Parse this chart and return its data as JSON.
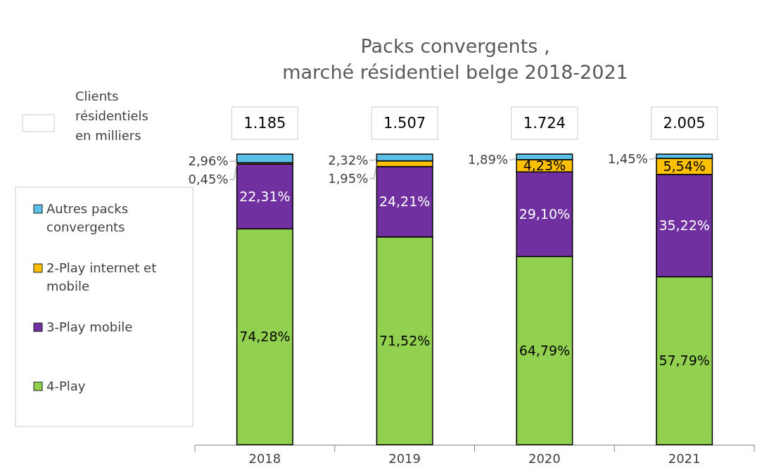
{
  "chart_data": {
    "type": "bar",
    "title": "Packs convergents ,\nmarché résidentiel belge 2018-2021",
    "categories": [
      "2018",
      "2019",
      "2020",
      "2021"
    ],
    "stacked": true,
    "legend": "left",
    "series": [
      {
        "name": "4-Play",
        "color": "#92d050",
        "values": [
          74.28,
          71.52,
          64.79,
          57.79
        ],
        "value_labels": [
          "74,28%",
          "71,52%",
          "64,79%",
          "57,79%"
        ]
      },
      {
        "name": "3-Play mobile",
        "color": "#7030a0",
        "values": [
          22.31,
          24.21,
          29.1,
          35.22
        ],
        "value_labels": [
          "22,31%",
          "24,21%",
          "29,10%",
          "35,22%"
        ]
      },
      {
        "name": "2-Play internet et mobile",
        "color": "#ffc000",
        "values": [
          0.45,
          1.95,
          4.23,
          5.54
        ],
        "value_labels": [
          "0,45%",
          "1,95%",
          "4,23%",
          "5,54%"
        ]
      },
      {
        "name": "Autres packs convergents",
        "color": "#5bc0e8",
        "values": [
          2.96,
          2.32,
          1.89,
          1.45
        ],
        "value_labels": [
          "2,96%",
          "2,32%",
          "1,89%",
          "1,45%"
        ]
      }
    ],
    "annotations": [
      "Clients résidentiels en milliers",
      {
        "text": "1.185",
        "x": "2018",
        "y": 100
      },
      {
        "text": "1.507",
        "x": "2019",
        "y": 100
      },
      {
        "text": "1.724",
        "x": "2020",
        "y": 100
      },
      {
        "text": "2.005",
        "x": "2021",
        "y": 100
      }
    ]
  }
}
